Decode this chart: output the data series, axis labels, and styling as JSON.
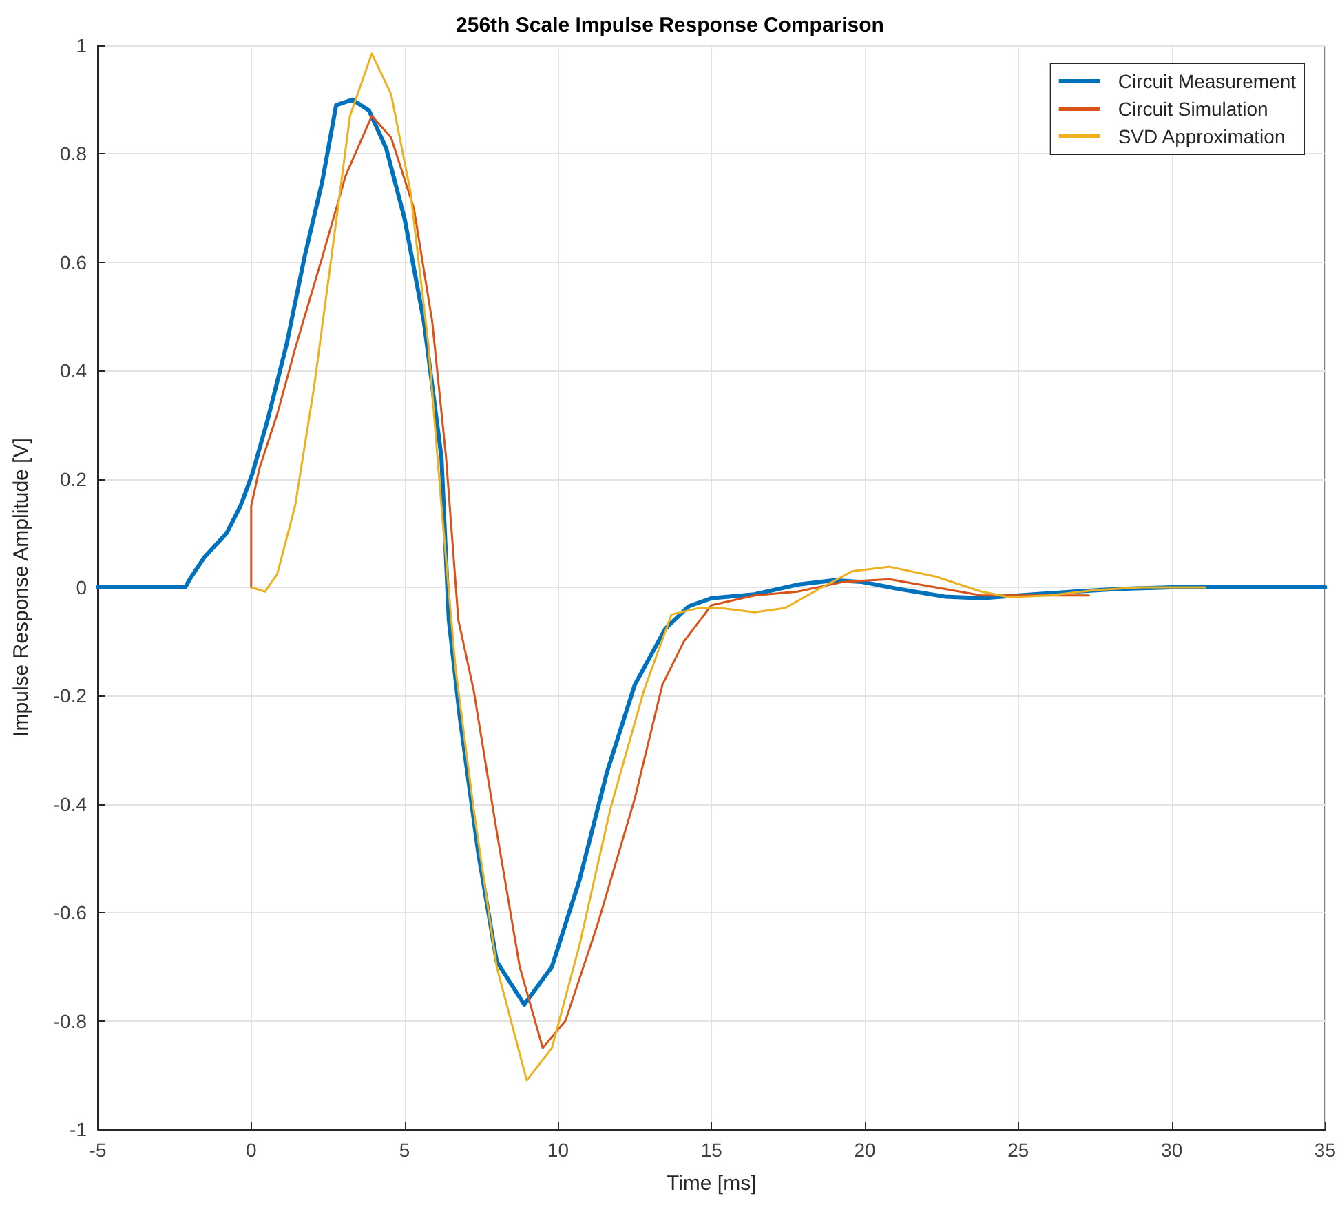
{
  "chart_data": {
    "type": "line",
    "title": "256th Scale Impulse Response Comparison",
    "xlabel": "Time [ms]",
    "ylabel": "Impulse Response Amplitude [V]",
    "xlim": [
      -5,
      35
    ],
    "xticks": [
      -5,
      0,
      5,
      10,
      15,
      20,
      25,
      30,
      35
    ],
    "ylim": [
      -1,
      1
    ],
    "yticks": [
      -1,
      -0.8,
      -0.6,
      -0.4,
      -0.2,
      0,
      0.2,
      0.4,
      0.6,
      0.8,
      1
    ],
    "grid": true,
    "legend": "top right",
    "marker": "none",
    "line_style": "solid",
    "series": [
      {
        "name": "Circuit Measurement",
        "color": "#0072bd",
        "x": [
          -5,
          -3,
          -2.15,
          -1.97,
          -1.52,
          -0.8,
          -0.35,
          0.04,
          0.54,
          1.16,
          1.74,
          2.32,
          2.77,
          3.3,
          3.84,
          4.4,
          5.0,
          5.63,
          6.2,
          6.44,
          6.8,
          7.4,
          8.0,
          8.9,
          9.8,
          10.7,
          11.6,
          12.5,
          13.5,
          14.26,
          15.0,
          16.4,
          17.8,
          19.0,
          19.9,
          21.1,
          22.6,
          23.8,
          25.0,
          26.8,
          28.3,
          30,
          32,
          35
        ],
        "values": [
          0,
          0,
          0,
          0.018,
          0.056,
          0.1,
          0.15,
          0.21,
          0.31,
          0.45,
          0.61,
          0.75,
          0.89,
          0.9,
          0.88,
          0.81,
          0.68,
          0.49,
          0.24,
          -0.06,
          -0.24,
          -0.49,
          -0.69,
          -0.77,
          -0.7,
          -0.54,
          -0.34,
          -0.18,
          -0.076,
          -0.035,
          -0.02,
          -0.013,
          0.005,
          0.013,
          0.01,
          -0.003,
          -0.017,
          -0.02,
          -0.015,
          -0.008,
          -0.003,
          0,
          0,
          0
        ]
      },
      {
        "name": "Circuit Simulation",
        "color": "#d95319",
        "x": [
          0,
          0,
          0.27,
          0.85,
          1.43,
          2.32,
          3.08,
          3.93,
          4.56,
          5.3,
          5.9,
          6.35,
          6.75,
          7.25,
          8.0,
          8.75,
          9.5,
          10.24,
          11.3,
          12.5,
          13.4,
          14.1,
          15.0,
          16.4,
          17.8,
          19.3,
          20.8,
          22.3,
          23.8,
          25.3,
          27.3
        ],
        "values": [
          0,
          0.15,
          0.22,
          0.32,
          0.44,
          0.61,
          0.76,
          0.87,
          0.83,
          0.7,
          0.49,
          0.24,
          -0.06,
          -0.19,
          -0.45,
          -0.7,
          -0.85,
          -0.8,
          -0.62,
          -0.39,
          -0.18,
          -0.1,
          -0.033,
          -0.015,
          -0.008,
          0.01,
          0.015,
          0,
          -0.015,
          -0.015,
          -0.015
        ]
      },
      {
        "name": "SVD Approximation",
        "color": "#edb120",
        "x": [
          0,
          0.45,
          0.85,
          1.43,
          2.05,
          2.64,
          3.22,
          3.93,
          4.56,
          5.19,
          5.77,
          6.2,
          6.66,
          7.25,
          8.0,
          8.98,
          9.8,
          10.7,
          11.7,
          12.8,
          13.7,
          14.6,
          15.3,
          16.4,
          17.4,
          18.6,
          19.6,
          20.8,
          22.3,
          23.8,
          24.7,
          26.0,
          27.5,
          29.0,
          31.1
        ],
        "values": [
          0,
          -0.008,
          0.025,
          0.15,
          0.37,
          0.62,
          0.87,
          0.985,
          0.91,
          0.73,
          0.45,
          0.15,
          -0.15,
          -0.41,
          -0.7,
          -0.91,
          -0.85,
          -0.66,
          -0.41,
          -0.19,
          -0.05,
          -0.038,
          -0.038,
          -0.046,
          -0.038,
          0,
          0.03,
          0.038,
          0.02,
          -0.008,
          -0.018,
          -0.015,
          -0.005,
          0,
          0
        ]
      }
    ]
  }
}
